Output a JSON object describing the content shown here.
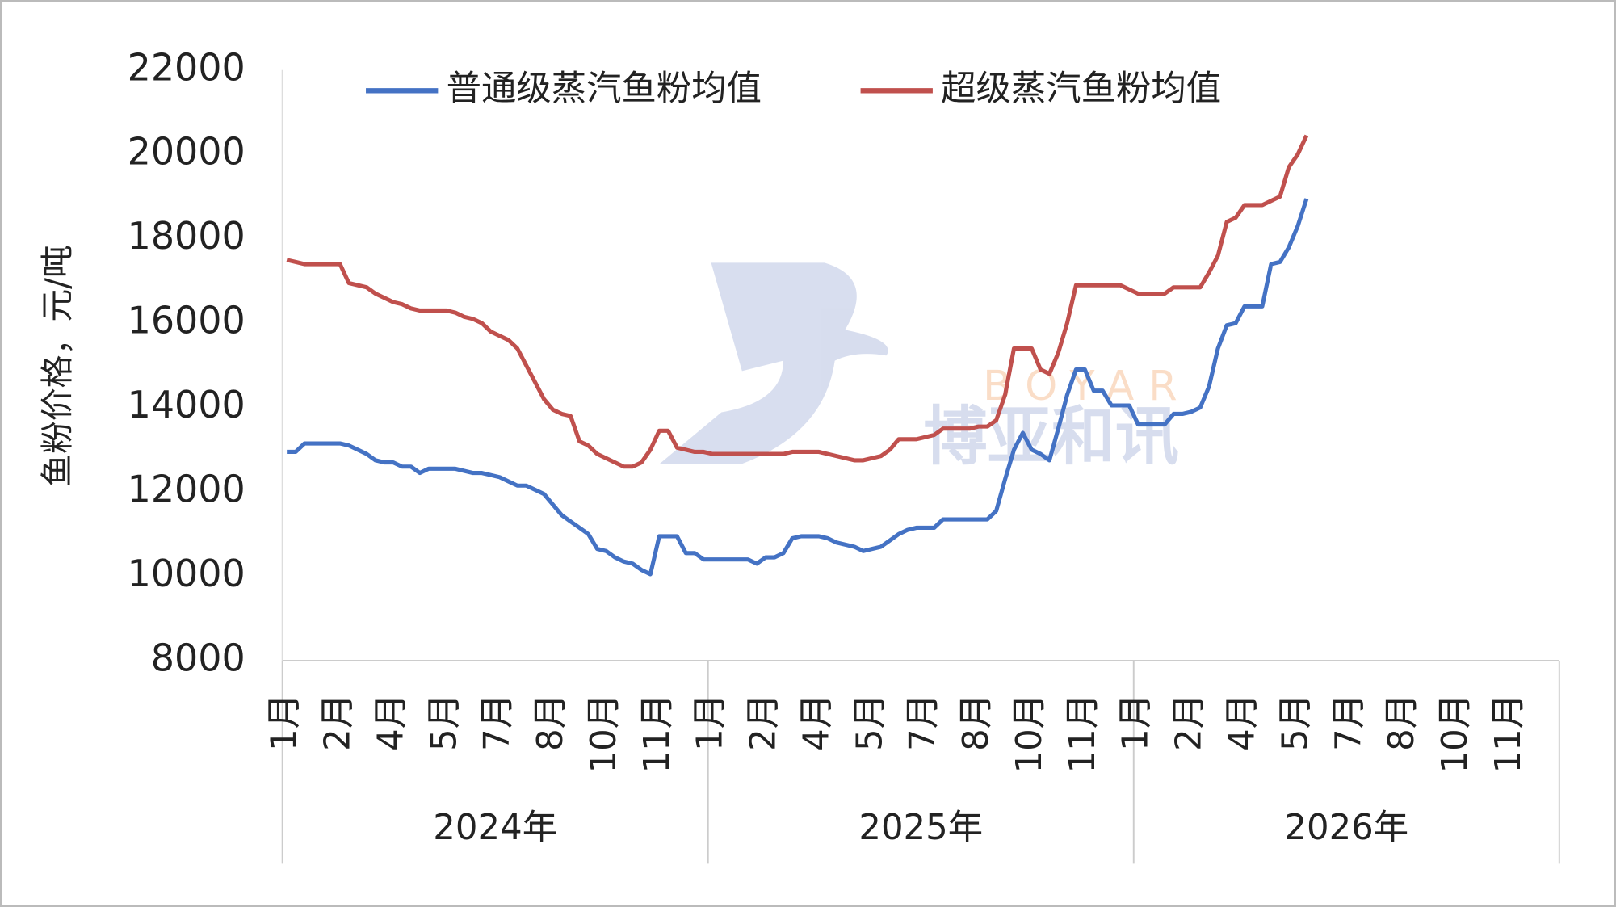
{
  "chart_data": {
    "type": "line",
    "ylabel": "鱼粉价格，元/吨",
    "ylim": [
      8000,
      22000
    ],
    "yticks": [
      8000,
      10000,
      12000,
      14000,
      16000,
      18000,
      20000,
      22000
    ],
    "grid": false,
    "legend": "top",
    "watermark": [
      "BOYAR",
      "博亚和讯"
    ],
    "year_labels": [
      "2024年",
      "2025年",
      "2026年"
    ],
    "categories": [
      "1月",
      null,
      null,
      null,
      null,
      null,
      "2月",
      null,
      null,
      null,
      null,
      null,
      "4月",
      null,
      null,
      null,
      null,
      null,
      "5月",
      null,
      null,
      null,
      null,
      null,
      "7月",
      null,
      null,
      null,
      null,
      null,
      "8月",
      null,
      null,
      null,
      null,
      null,
      "10月",
      null,
      null,
      null,
      null,
      null,
      "11月",
      null,
      null,
      null,
      null,
      null,
      "1月",
      null,
      null,
      null,
      null,
      null,
      "2月",
      null,
      null,
      null,
      null,
      null,
      "4月",
      null,
      null,
      null,
      null,
      null,
      "5月",
      null,
      null,
      null,
      null,
      null,
      "7月",
      null,
      null,
      null,
      null,
      null,
      "8月",
      null,
      null,
      null,
      null,
      null,
      "10月",
      null,
      null,
      null,
      null,
      null,
      "11月",
      null,
      null,
      null,
      null,
      null,
      "1月",
      null,
      null,
      null,
      null,
      null,
      "2月",
      null,
      null,
      null,
      null,
      null,
      "4月",
      null,
      null,
      null,
      null,
      null,
      "5月",
      null,
      null,
      null,
      null,
      null,
      "7月",
      null,
      null,
      null,
      null,
      null,
      "8月",
      null,
      null,
      null,
      null,
      null,
      "10月",
      null,
      null,
      null,
      null,
      null,
      "11月",
      null,
      null,
      null,
      null,
      null
    ],
    "series": [
      {
        "name": "普通级蒸汽鱼粉均值",
        "color": "#4472c4",
        "values": [
          12950,
          12950,
          13150,
          13150,
          13150,
          13150,
          13150,
          13100,
          13000,
          12900,
          12750,
          12700,
          12700,
          12600,
          12600,
          12450,
          12550,
          12550,
          12550,
          12550,
          12500,
          12450,
          12450,
          12400,
          12350,
          12250,
          12150,
          12150,
          12050,
          11950,
          11700,
          11450,
          11300,
          11150,
          11000,
          10650,
          10600,
          10450,
          10350,
          10300,
          10150,
          10050,
          10950,
          10950,
          10950,
          10550,
          10550,
          10400,
          10400,
          10400,
          10400,
          10400,
          10400,
          10300,
          10450,
          10450,
          10550,
          10900,
          10950,
          10950,
          10950,
          10900,
          10800,
          10750,
          10700,
          10600,
          10650,
          10700,
          10850,
          11000,
          11100,
          11150,
          11150,
          11150,
          11350,
          11350,
          11350,
          11350,
          11350,
          11350,
          11550,
          12300,
          13000,
          13400,
          13000,
          12900,
          12750,
          13500,
          14300,
          14900,
          14900,
          14400,
          14400,
          14050,
          14050,
          14050,
          13600,
          13600,
          13600,
          13600,
          13850,
          13850,
          13900,
          14000,
          14500,
          15400,
          15950,
          16000,
          16400,
          16400,
          16400,
          17400,
          17450,
          17800,
          18300,
          18950,
          null,
          null,
          null,
          null,
          null,
          null,
          null,
          null,
          null,
          null,
          null,
          null,
          null,
          null,
          null,
          null,
          null,
          null,
          null,
          null,
          null,
          null,
          null,
          null,
          null,
          null,
          null,
          null
        ]
      },
      {
        "name": "超级蒸汽鱼粉均值",
        "color": "#c0504d",
        "values": [
          17500,
          17450,
          17400,
          17400,
          17400,
          17400,
          17400,
          16950,
          16900,
          16850,
          16700,
          16600,
          16500,
          16450,
          16350,
          16300,
          16300,
          16300,
          16300,
          16250,
          16150,
          16100,
          16000,
          15800,
          15700,
          15600,
          15400,
          15000,
          14600,
          14200,
          13950,
          13850,
          13800,
          13200,
          13100,
          12900,
          12800,
          12700,
          12600,
          12600,
          12700,
          13000,
          13450,
          13450,
          13050,
          13000,
          12950,
          12950,
          12900,
          12900,
          12900,
          12900,
          12900,
          12900,
          12900,
          12900,
          12900,
          12950,
          12950,
          12950,
          12950,
          12900,
          12850,
          12800,
          12750,
          12750,
          12800,
          12850,
          13000,
          13250,
          13250,
          13250,
          13300,
          13350,
          13500,
          13500,
          13500,
          13500,
          13550,
          13550,
          13700,
          14300,
          15400,
          15400,
          15400,
          14900,
          14800,
          15300,
          16000,
          16900,
          16900,
          16900,
          16900,
          16900,
          16900,
          16800,
          16700,
          16700,
          16700,
          16700,
          16850,
          16850,
          16850,
          16850,
          17200,
          17600,
          18400,
          18500,
          18800,
          18800,
          18800,
          18900,
          19000,
          19700,
          20000,
          20450,
          null,
          null,
          null,
          null,
          null,
          null,
          null,
          null,
          null,
          null,
          null,
          null,
          null,
          null,
          null,
          null,
          null,
          null,
          null,
          null,
          null,
          null,
          null,
          null,
          null,
          null,
          null,
          null
        ]
      }
    ]
  }
}
